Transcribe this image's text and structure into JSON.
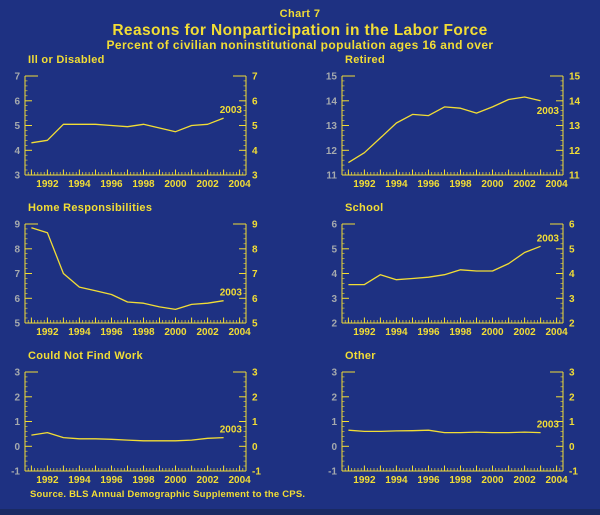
{
  "header": {
    "chart_label": "Chart 7",
    "title": "Reasons for Nonparticipation in the Labor Force",
    "subtitle": "Percent of civilian noninstitutional population ages 16 and over"
  },
  "footer": {
    "source": "Source. BLS Annual Demographic Supplement to the CPS."
  },
  "colors": {
    "background": "#1e3182",
    "accent_yellow": "#f2dd35",
    "left_axis_label": "#a6aaae",
    "bottom_edge": "#1a2a63"
  },
  "chart_data": [
    {
      "type": "line",
      "title": "Ill or Disabled",
      "x": [
        1991,
        1992,
        1993,
        1994,
        1995,
        1996,
        1997,
        1998,
        1999,
        2000,
        2001,
        2002,
        2003
      ],
      "values": [
        4.3,
        4.4,
        5.05,
        5.05,
        5.05,
        5.0,
        4.95,
        5.05,
        4.9,
        4.75,
        5.0,
        5.05,
        5.3
      ],
      "ylim": [
        3,
        7
      ],
      "ytick_step": 1,
      "xlim": [
        1990.6,
        2004.4
      ],
      "xtick_labels": [
        1992,
        1994,
        1996,
        1998,
        2000,
        2002,
        2004
      ],
      "end_label": "2003",
      "end_label_position": "above",
      "grid": false,
      "legend": "none"
    },
    {
      "type": "line",
      "title": "Retired",
      "x": [
        1991,
        1992,
        1993,
        1994,
        1995,
        1996,
        1997,
        1998,
        1999,
        2000,
        2001,
        2002,
        2003
      ],
      "values": [
        11.5,
        11.9,
        12.5,
        13.1,
        13.45,
        13.4,
        13.75,
        13.7,
        13.5,
        13.75,
        14.05,
        14.15,
        14.0
      ],
      "ylim": [
        11,
        15
      ],
      "ytick_step": 1,
      "xlim": [
        1990.6,
        2004.4
      ],
      "xtick_labels": [
        1992,
        1994,
        1996,
        1998,
        2000,
        2002,
        2004
      ],
      "end_label": "2003",
      "end_label_position": "below",
      "grid": false,
      "legend": "none"
    },
    {
      "type": "line",
      "title": "Home Responsibilities",
      "x": [
        1991,
        1992,
        1993,
        1994,
        1995,
        1996,
        1997,
        1998,
        1999,
        2000,
        2001,
        2002,
        2003
      ],
      "values": [
        8.85,
        8.65,
        7.0,
        6.45,
        6.3,
        6.15,
        5.85,
        5.8,
        5.65,
        5.55,
        5.75,
        5.8,
        5.9
      ],
      "ylim": [
        5,
        9
      ],
      "ytick_step": 1,
      "xlim": [
        1990.6,
        2004.4
      ],
      "xtick_labels": [
        1992,
        1994,
        1996,
        1998,
        2000,
        2002,
        2004
      ],
      "end_label": "2003",
      "end_label_position": "above",
      "grid": false,
      "legend": "none"
    },
    {
      "type": "line",
      "title": "School",
      "x": [
        1991,
        1992,
        1993,
        1994,
        1995,
        1996,
        1997,
        1998,
        1999,
        2000,
        2001,
        2002,
        2003
      ],
      "values": [
        3.55,
        3.55,
        3.95,
        3.75,
        3.8,
        3.85,
        3.95,
        4.15,
        4.1,
        4.1,
        4.4,
        4.85,
        5.1
      ],
      "ylim": [
        2,
        6
      ],
      "ytick_step": 1,
      "xlim": [
        1990.6,
        2004.4
      ],
      "xtick_labels": [
        1992,
        1994,
        1996,
        1998,
        2000,
        2002,
        2004
      ],
      "end_label": "2003",
      "end_label_position": "above",
      "grid": false,
      "legend": "none"
    },
    {
      "type": "line",
      "title": "Could Not Find Work",
      "x": [
        1991,
        1992,
        1993,
        1994,
        1995,
        1996,
        1997,
        1998,
        1999,
        2000,
        2001,
        2002,
        2003
      ],
      "values": [
        0.45,
        0.55,
        0.35,
        0.3,
        0.3,
        0.28,
        0.25,
        0.22,
        0.22,
        0.22,
        0.25,
        0.32,
        0.35
      ],
      "ylim": [
        -1,
        3
      ],
      "ytick_step": 1,
      "xlim": [
        1990.6,
        2004.4
      ],
      "xtick_labels": [
        1992,
        1994,
        1996,
        1998,
        2000,
        2002,
        2004
      ],
      "end_label": "2003",
      "end_label_position": "above",
      "grid": false,
      "legend": "none"
    },
    {
      "type": "line",
      "title": "Other",
      "x": [
        1991,
        1992,
        1993,
        1994,
        1995,
        1996,
        1997,
        1998,
        1999,
        2000,
        2001,
        2002,
        2003
      ],
      "values": [
        0.65,
        0.6,
        0.6,
        0.62,
        0.63,
        0.65,
        0.55,
        0.55,
        0.57,
        0.55,
        0.55,
        0.57,
        0.55
      ],
      "ylim": [
        -1,
        3
      ],
      "ytick_step": 1,
      "xlim": [
        1990.6,
        2004.4
      ],
      "xtick_labels": [
        1992,
        1994,
        1996,
        1998,
        2000,
        2002,
        2004
      ],
      "end_label": "2003",
      "end_label_position": "above",
      "grid": false,
      "legend": "none"
    }
  ]
}
